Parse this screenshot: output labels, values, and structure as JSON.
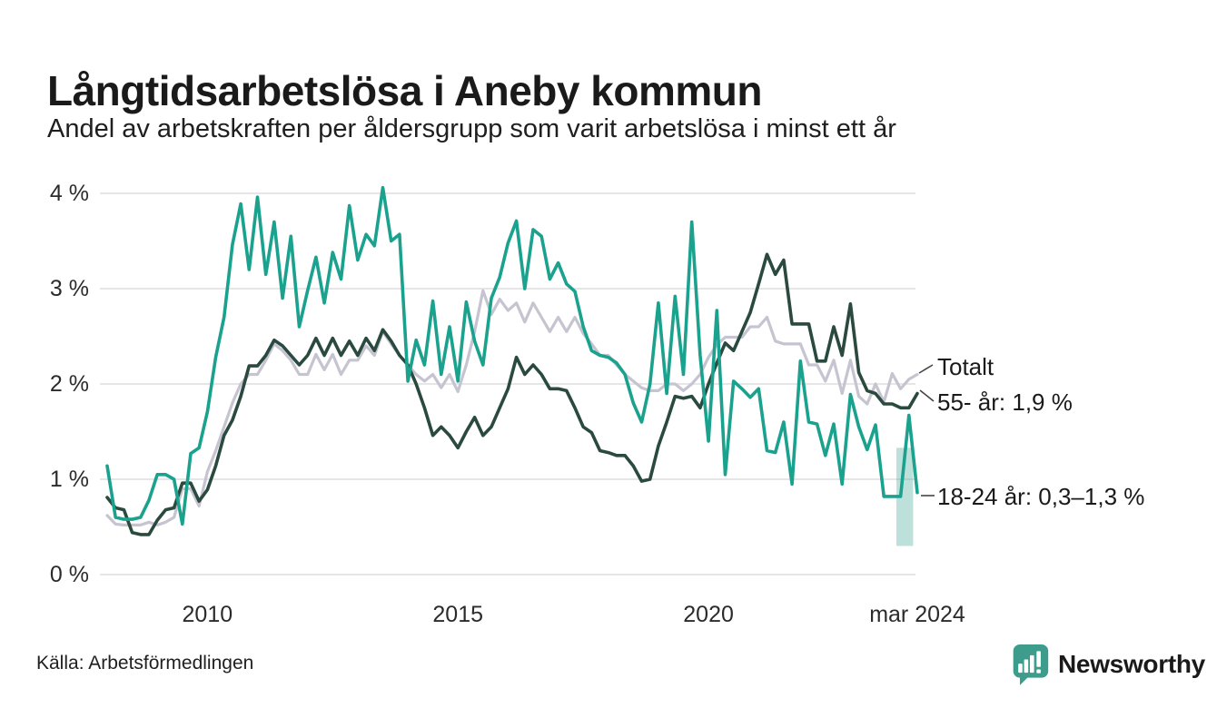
{
  "header": {
    "title": "Långtidsarbetslösa i Aneby kommun",
    "subtitle": "Andel av arbetskraften per åldersgrupp som varit arbetslösa i minst ett år"
  },
  "footer": {
    "source": "Källa: Arbetsförmedlingen",
    "logo_text": "Newsworthy",
    "logo_color": "#35a08e"
  },
  "colors": {
    "series_18_24": "#1aa28e",
    "series_55": "#2b4a3f",
    "series_total": "#c6c4d0",
    "uncertainty_band": "#35a08e",
    "gridline": "#e6e6e9",
    "text": "#1a1a1a"
  },
  "chart_data": {
    "type": "line",
    "title": "Långtidsarbetslösa i Aneby kommun",
    "subtitle": "Andel av arbetskraften per åldersgrupp som varit arbetslösa i minst ett år",
    "x_unit": "month",
    "x_start": "2008-01",
    "x_end": "2024-03",
    "step_months": 2,
    "months_total": 194,
    "ylim": [
      0,
      4
    ],
    "grid": "horizontal-only",
    "legend_position": "right-annotations",
    "y_ticks": [
      {
        "value": 0,
        "label": "0 %"
      },
      {
        "value": 1,
        "label": "1 %"
      },
      {
        "value": 2,
        "label": "2 %"
      },
      {
        "value": 3,
        "label": "3 %"
      },
      {
        "value": 4,
        "label": "4 %"
      }
    ],
    "x_ticks": [
      {
        "month": 24,
        "label": "2010"
      },
      {
        "month": 84,
        "label": "2015"
      },
      {
        "month": 144,
        "label": "2020"
      },
      {
        "month": 194,
        "label": "mar 2024"
      }
    ],
    "series": [
      {
        "name": "Totalt",
        "color": "#c6c4d0",
        "values": [
          0.62,
          0.53,
          0.52,
          0.52,
          0.52,
          0.55,
          0.52,
          0.55,
          0.6,
          0.9,
          0.9,
          0.72,
          1.08,
          1.3,
          1.55,
          1.8,
          2.0,
          2.1,
          2.1,
          2.25,
          2.42,
          2.35,
          2.25,
          2.1,
          2.1,
          2.31,
          2.15,
          2.31,
          2.1,
          2.25,
          2.25,
          2.4,
          2.3,
          2.55,
          2.42,
          2.3,
          2.2,
          2.1,
          2.03,
          2.1,
          1.96,
          2.1,
          1.92,
          2.2,
          2.55,
          2.98,
          2.73,
          2.89,
          2.77,
          2.85,
          2.65,
          2.85,
          2.7,
          2.55,
          2.7,
          2.55,
          2.7,
          2.53,
          2.42,
          2.3,
          2.3,
          2.2,
          2.1,
          2.03,
          1.96,
          1.93,
          1.93,
          2.0,
          2.0,
          1.93,
          2.0,
          2.1,
          2.28,
          2.41,
          2.49,
          2.49,
          2.49,
          2.6,
          2.6,
          2.7,
          2.45,
          2.42,
          2.42,
          2.42,
          2.2,
          2.2,
          2.03,
          2.25,
          1.9,
          2.25,
          1.87,
          1.79,
          2.0,
          1.81,
          2.11,
          1.95,
          2.05,
          2.1
        ]
      },
      {
        "name": "55- år",
        "color": "#2b4a3f",
        "values": [
          0.81,
          0.7,
          0.68,
          0.44,
          0.42,
          0.42,
          0.57,
          0.68,
          0.7,
          0.96,
          0.96,
          0.77,
          0.89,
          1.14,
          1.46,
          1.62,
          1.87,
          2.19,
          2.19,
          2.3,
          2.46,
          2.4,
          2.3,
          2.2,
          2.3,
          2.48,
          2.3,
          2.48,
          2.3,
          2.45,
          2.3,
          2.48,
          2.35,
          2.57,
          2.45,
          2.3,
          2.2,
          2.0,
          1.75,
          1.46,
          1.55,
          1.46,
          1.33,
          1.5,
          1.65,
          1.46,
          1.55,
          1.75,
          1.95,
          2.28,
          2.1,
          2.2,
          2.1,
          1.95,
          1.95,
          1.93,
          1.75,
          1.55,
          1.49,
          1.3,
          1.28,
          1.25,
          1.25,
          1.14,
          0.98,
          1.0,
          1.35,
          1.6,
          1.87,
          1.85,
          1.87,
          1.75,
          2.0,
          2.22,
          2.43,
          2.35,
          2.55,
          2.75,
          3.05,
          3.36,
          3.15,
          3.3,
          2.63,
          2.63,
          2.63,
          2.24,
          2.24,
          2.6,
          2.3,
          2.84,
          2.12,
          1.93,
          1.9,
          1.79,
          1.79,
          1.75,
          1.75,
          1.9
        ]
      },
      {
        "name": "18-24 år",
        "color": "#1aa28e",
        "values": [
          1.14,
          0.6,
          0.58,
          0.58,
          0.6,
          0.78,
          1.05,
          1.05,
          1.0,
          0.53,
          1.27,
          1.33,
          1.71,
          2.28,
          2.7,
          3.46,
          3.89,
          3.2,
          3.96,
          3.15,
          3.7,
          2.9,
          3.55,
          2.6,
          2.98,
          3.33,
          2.85,
          3.38,
          3.1,
          3.87,
          3.3,
          3.57,
          3.45,
          4.06,
          3.5,
          3.57,
          2.03,
          2.46,
          2.2,
          2.87,
          2.1,
          2.6,
          2.03,
          2.86,
          2.45,
          2.2,
          2.9,
          3.12,
          3.48,
          3.71,
          3.0,
          3.62,
          3.55,
          3.1,
          3.27,
          3.05,
          2.97,
          2.6,
          2.35,
          2.3,
          2.28,
          2.22,
          2.1,
          1.8,
          1.6,
          2.0,
          2.85,
          1.9,
          2.92,
          2.1,
          3.7,
          2.3,
          1.4,
          2.77,
          1.05,
          2.03,
          1.95,
          1.86,
          1.95,
          1.3,
          1.28,
          1.6,
          0.95,
          2.24,
          1.6,
          1.58,
          1.25,
          1.58,
          0.95,
          1.89,
          1.55,
          1.31,
          1.57,
          0.82,
          0.82,
          0.82,
          1.67,
          0.86
        ]
      }
    ],
    "uncertainty_band": {
      "series": "18-24 år",
      "x_start_month": 189,
      "x_end_month": 193,
      "y_min": 0.3,
      "y_max": 1.33
    },
    "annotations": [
      {
        "label": "Totalt"
      },
      {
        "label": "55- år: 1,9 %"
      },
      {
        "label": "18-24 år: 0,3–1,3 %"
      }
    ]
  }
}
